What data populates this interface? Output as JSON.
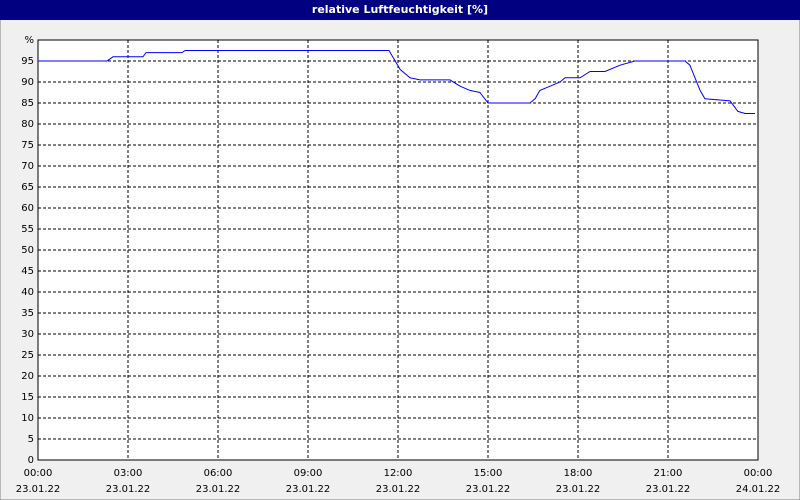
{
  "chart_data": {
    "type": "line",
    "title": "relative Luftfeuchtigkeit [%]",
    "x": [
      0,
      2.3,
      2.5,
      3.5,
      3.6,
      4.8,
      4.9,
      11.7,
      12.07,
      12.4,
      12.73,
      13.73,
      14.07,
      14.4,
      14.73,
      15,
      16.4,
      16.57,
      16.73,
      17.07,
      17.4,
      17.57,
      18.07,
      18.4,
      18.9,
      19.4,
      19.9,
      21.57,
      21.73,
      22.07,
      22.23,
      23.07,
      23.33,
      23.57,
      23.9
    ],
    "values": [
      95,
      95,
      96,
      96,
      97,
      97,
      97.5,
      97.5,
      93,
      91,
      90.5,
      90.5,
      89,
      88,
      87.5,
      85,
      85,
      86,
      88,
      89,
      90,
      91,
      91,
      92.5,
      92.5,
      94,
      95,
      95,
      94,
      88,
      86,
      85.5,
      83,
      82.5,
      82.5
    ],
    "color": "#0000ff",
    "xlim": [
      0,
      24
    ],
    "xticks": [
      {
        "value": 0,
        "label": "00:00",
        "date": "23.01.22"
      },
      {
        "value": 3,
        "label": "03:00",
        "date": "23.01.22"
      },
      {
        "value": 6,
        "label": "06:00",
        "date": "23.01.22"
      },
      {
        "value": 9,
        "label": "09:00",
        "date": "23.01.22"
      },
      {
        "value": 12,
        "label": "12:00",
        "date": "23.01.22"
      },
      {
        "value": 15,
        "label": "15:00",
        "date": "23.01.22"
      },
      {
        "value": 18,
        "label": "18:00",
        "date": "23.01.22"
      },
      {
        "value": 21,
        "label": "21:00",
        "date": "23.01.22"
      },
      {
        "value": 24,
        "label": "00:00",
        "date": "24.01.22"
      }
    ],
    "ylim": [
      0,
      100
    ],
    "yticks": [
      0,
      5,
      10,
      15,
      20,
      25,
      30,
      35,
      40,
      45,
      50,
      55,
      60,
      65,
      70,
      75,
      80,
      85,
      90,
      95,
      {
        "value": 100,
        "label": "%"
      }
    ],
    "grid": true
  }
}
